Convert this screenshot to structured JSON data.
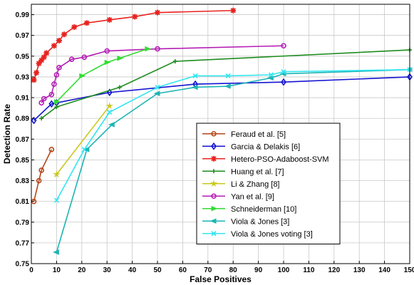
{
  "chart_data": {
    "type": "line",
    "title": "",
    "xlabel": "False Positives",
    "ylabel": "Detection Rate",
    "xlim": [
      0,
      150
    ],
    "ylim": [
      0.75,
      1.0
    ],
    "x_ticks": [
      0,
      10,
      20,
      30,
      40,
      50,
      60,
      70,
      80,
      90,
      100,
      110,
      120,
      130,
      140,
      150
    ],
    "y_ticks": [
      0.75,
      0.77,
      0.79,
      0.81,
      0.83,
      0.85,
      0.87,
      0.89,
      0.91,
      0.93,
      0.95,
      0.97,
      0.99
    ],
    "grid": true,
    "legend_position": "lower-right",
    "series": [
      {
        "name": "Feraud et al. [5]",
        "color": "#b5471b",
        "marker": "circle",
        "x": [
          1,
          3,
          4,
          8
        ],
        "y": [
          0.81,
          0.83,
          0.84,
          0.86
        ]
      },
      {
        "name": "Garcia & Delakis [6]",
        "color": "#1414d2",
        "marker": "diamond",
        "x": [
          1,
          8,
          10,
          31,
          65,
          100,
          150
        ],
        "y": [
          0.888,
          0.904,
          0.905,
          0.915,
          0.923,
          0.925,
          0.93
        ]
      },
      {
        "name": "Hetero-PSO-Adaboost-SVM",
        "color": "#e8221e",
        "marker": "asterisk",
        "x": [
          1,
          2,
          3,
          4,
          5,
          6,
          9,
          11,
          13,
          17,
          22,
          31,
          41,
          50,
          80
        ],
        "y": [
          0.927,
          0.934,
          0.943,
          0.946,
          0.949,
          0.953,
          0.96,
          0.965,
          0.971,
          0.978,
          0.982,
          0.985,
          0.988,
          0.992,
          0.994
        ]
      },
      {
        "name": "Huang et al. [7]",
        "color": "#1e8c1e",
        "marker": "plus",
        "x": [
          4,
          10,
          35,
          57,
          150
        ],
        "y": [
          0.89,
          0.901,
          0.92,
          0.945,
          0.956
        ]
      },
      {
        "name": "Li & Zhang [8]",
        "color": "#c8c81e",
        "marker": "star",
        "x": [
          10,
          31
        ],
        "y": [
          0.836,
          0.902
        ]
      },
      {
        "name": "Yan et al. [9]",
        "color": "#b41eb4",
        "marker": "circle",
        "x": [
          4,
          5,
          8,
          9,
          10,
          11,
          16,
          21,
          30,
          50,
          100
        ],
        "y": [
          0.905,
          0.909,
          0.913,
          0.923,
          0.932,
          0.939,
          0.947,
          0.949,
          0.955,
          0.957,
          0.96
        ]
      },
      {
        "name": "Schneiderman [10]",
        "color": "#32dc32",
        "marker": "triangle-right",
        "x": [
          10,
          20,
          30,
          35,
          46
        ],
        "y": [
          0.906,
          0.931,
          0.944,
          0.948,
          0.957
        ]
      },
      {
        "name": "Viola & Jones [3]",
        "color": "#1eb4b4",
        "marker": "triangle-left",
        "x": [
          10,
          22,
          32,
          50,
          65,
          78,
          95,
          100,
          150
        ],
        "y": [
          0.761,
          0.86,
          0.884,
          0.914,
          0.92,
          0.921,
          0.929,
          0.933,
          0.937
        ]
      },
      {
        "name": "Viola & Jones voting [3]",
        "color": "#32e6f0",
        "marker": "x",
        "x": [
          10,
          21,
          31,
          50,
          65,
          78,
          95,
          100,
          150
        ],
        "y": [
          0.811,
          0.86,
          0.896,
          0.92,
          0.931,
          0.931,
          0.932,
          0.935,
          0.937
        ]
      }
    ]
  }
}
